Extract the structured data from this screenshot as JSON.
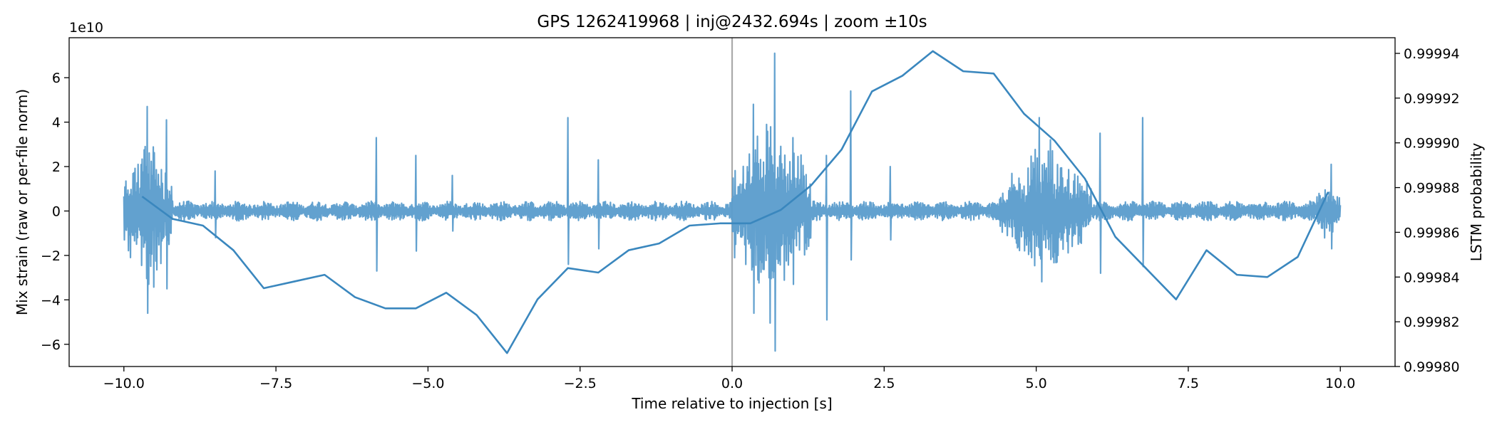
{
  "chart_data": {
    "type": "line",
    "title": "GPS 1262419968 | inj@2432.694s | zoom ±10s",
    "xlabel": "Time relative to injection [s]",
    "ylabel_left": "Mix strain (raw or per-file norm)",
    "ylabel_right": "LSTM probability",
    "left_offset_label": "1e10",
    "xlim": [
      -10.9,
      10.9
    ],
    "ylim_left": [
      -7.0,
      7.8
    ],
    "ylim_right": [
      0.9998,
      0.999947
    ],
    "x_ticks": [
      -10.0,
      -7.5,
      -5.0,
      -2.5,
      0.0,
      2.5,
      5.0,
      7.5,
      10.0
    ],
    "x_tick_labels": [
      "−10.0",
      "−7.5",
      "−5.0",
      "−2.5",
      "0.0",
      "2.5",
      "5.0",
      "7.5",
      "10.0"
    ],
    "y_left_ticks": [
      -6,
      -4,
      -2,
      0,
      2,
      4,
      6
    ],
    "y_left_tick_labels": [
      "−6",
      "−4",
      "−2",
      "0",
      "2",
      "4",
      "6"
    ],
    "y_right_ticks": [
      0.9998,
      0.99982,
      0.99984,
      0.99986,
      0.99988,
      0.9999,
      0.99992,
      0.99994
    ],
    "y_right_tick_labels": [
      "0.99980",
      "0.99982",
      "0.99984",
      "0.99986",
      "0.99988",
      "0.99990",
      "0.99992",
      "0.99994"
    ],
    "vline_x": 0.0,
    "colors": {
      "strain": "#5a9ccc",
      "probability": "#3a87be",
      "vline": "#aaaaaa",
      "axes": "#000000"
    },
    "strain_series": {
      "name": "Mix strain",
      "axis": "left",
      "x_range": [
        -10.0,
        10.0
      ],
      "noise_amplitude": 0.45,
      "bursts": [
        {
          "t_start": -10.0,
          "t_end": -9.2,
          "amplitude": 4.6
        },
        {
          "t_start": 0.0,
          "t_end": 1.3,
          "amplitude": 5.5
        },
        {
          "t_start": 4.4,
          "t_end": 5.9,
          "amplitude": 3.8
        },
        {
          "t_start": 9.6,
          "t_end": 10.0,
          "amplitude": 2.0
        }
      ],
      "glitches": [
        {
          "t": -9.62,
          "up": 4.7,
          "down": -4.6
        },
        {
          "t": -9.3,
          "up": 4.1,
          "down": -3.5
        },
        {
          "t": -8.5,
          "up": 1.8,
          "down": -1.2
        },
        {
          "t": -5.85,
          "up": 3.3,
          "down": -2.7
        },
        {
          "t": -5.2,
          "up": 2.5,
          "down": -1.8
        },
        {
          "t": -4.6,
          "up": 1.6,
          "down": -0.9
        },
        {
          "t": -2.7,
          "up": 4.2,
          "down": -2.4
        },
        {
          "t": -2.2,
          "up": 2.3,
          "down": -1.7
        },
        {
          "t": 0.35,
          "up": 4.8,
          "down": -4.6
        },
        {
          "t": 0.7,
          "up": 7.1,
          "down": -6.3
        },
        {
          "t": 1.0,
          "up": 3.3,
          "down": -3.3
        },
        {
          "t": 1.55,
          "up": 2.5,
          "down": -4.9
        },
        {
          "t": 1.95,
          "up": 5.4,
          "down": -2.2
        },
        {
          "t": 2.6,
          "up": 2.0,
          "down": -1.3
        },
        {
          "t": 5.05,
          "up": 4.2,
          "down": -2.0
        },
        {
          "t": 6.05,
          "up": 3.5,
          "down": -2.8
        },
        {
          "t": 6.75,
          "up": 4.2,
          "down": -2.5
        },
        {
          "t": 9.85,
          "up": 2.1,
          "down": -1.7
        }
      ]
    },
    "probability_series": {
      "name": "LSTM probability",
      "axis": "right",
      "x": [
        -9.7,
        -9.2,
        -8.7,
        -8.2,
        -7.7,
        -7.2,
        -6.7,
        -6.2,
        -5.7,
        -5.2,
        -4.7,
        -4.2,
        -3.7,
        -3.2,
        -2.7,
        -2.2,
        -1.7,
        -1.2,
        -0.7,
        -0.2,
        0.3,
        0.8,
        1.3,
        1.8,
        2.3,
        2.8,
        3.3,
        3.8,
        4.3,
        4.8,
        5.3,
        5.8,
        6.3,
        6.8,
        7.3,
        7.8,
        8.3,
        8.8,
        9.3,
        9.8
      ],
      "y": [
        0.999876,
        0.999866,
        0.999863,
        0.999852,
        0.999835,
        0.999838,
        0.999841,
        0.999831,
        0.999826,
        0.999826,
        0.999833,
        0.999823,
        0.999806,
        0.99983,
        0.999844,
        0.999842,
        0.999852,
        0.999855,
        0.999863,
        0.999864,
        0.999864,
        0.99987,
        0.999881,
        0.999897,
        0.999923,
        0.99993,
        0.999941,
        0.999932,
        0.999931,
        0.999913,
        0.999901,
        0.999884,
        0.999858,
        0.999844,
        0.99983,
        0.999852,
        0.999841,
        0.99984,
        0.999849,
        0.999878
      ]
    }
  }
}
